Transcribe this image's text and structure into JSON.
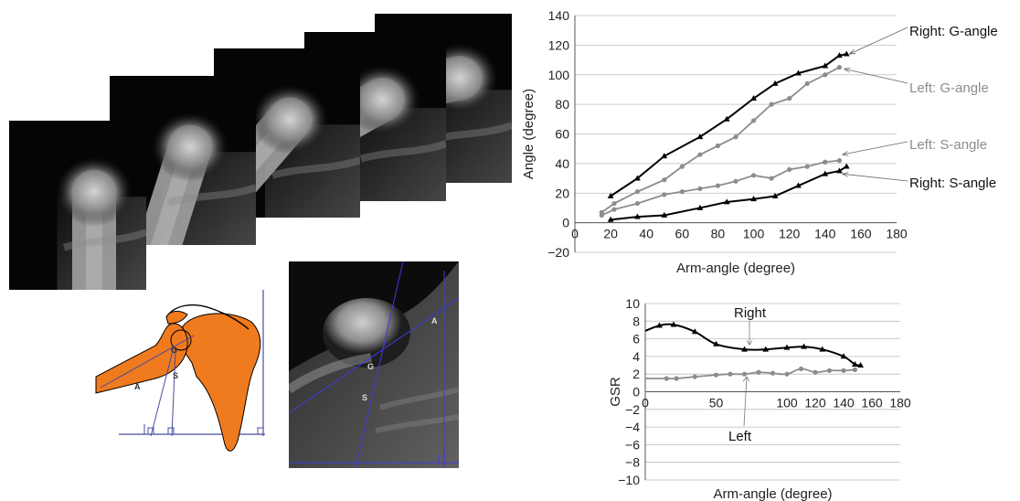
{
  "diagram": {
    "labels": [
      "G",
      "S",
      "A"
    ]
  },
  "chart_data": [
    {
      "type": "line",
      "xlabel": "Arm-angle (degree)",
      "ylabel": "Angle (degree)",
      "xlim": [
        0,
        180
      ],
      "ylim": [
        -20,
        140
      ],
      "xticks": [
        0,
        20,
        40,
        60,
        80,
        100,
        120,
        140,
        160,
        180
      ],
      "yticks": [
        -20,
        0,
        20,
        40,
        60,
        80,
        100,
        120,
        140
      ],
      "grid": "horizontal",
      "series": [
        {
          "name": "Right: G-angle",
          "color": "#000000",
          "marker": "triangle",
          "x": [
            20,
            35,
            50,
            70,
            85,
            100,
            112,
            125,
            140,
            148,
            152
          ],
          "y": [
            18,
            30,
            45,
            58,
            70,
            84,
            94,
            101,
            106,
            113,
            114
          ]
        },
        {
          "name": "Left: G-angle",
          "color": "#8c8c8c",
          "marker": "circle",
          "x": [
            15,
            22,
            35,
            50,
            60,
            70,
            80,
            90,
            100,
            110,
            120,
            130,
            140,
            148
          ],
          "y": [
            7,
            13,
            21,
            29,
            38,
            46,
            52,
            58,
            69,
            80,
            84,
            94,
            100,
            105
          ]
        },
        {
          "name": "Left: S-angle",
          "color": "#8c8c8c",
          "marker": "circle",
          "x": [
            15,
            22,
            35,
            50,
            60,
            70,
            80,
            90,
            100,
            110,
            120,
            130,
            140,
            148
          ],
          "y": [
            5,
            9,
            13,
            19,
            21,
            23,
            25,
            28,
            32,
            30,
            36,
            38,
            41,
            42
          ]
        },
        {
          "name": "Right: S-angle",
          "color": "#000000",
          "marker": "triangle",
          "x": [
            20,
            35,
            50,
            70,
            85,
            100,
            112,
            125,
            140,
            148,
            152
          ],
          "y": [
            2,
            4,
            5,
            10,
            14,
            16,
            18,
            25,
            33,
            35,
            38
          ]
        }
      ]
    },
    {
      "type": "line",
      "xlabel": "Arm-angle (degree)",
      "ylabel": "GSR",
      "xlim": [
        0,
        180
      ],
      "ylim": [
        -10,
        10
      ],
      "xticks": [
        0,
        50,
        100,
        120,
        140,
        160,
        180
      ],
      "yticks": [
        -10,
        -8,
        -6,
        -4,
        -2,
        0,
        2,
        4,
        6,
        8,
        10
      ],
      "grid": "horizontal",
      "series": [
        {
          "name": "Right",
          "color": "#000000",
          "marker": "triangle",
          "x": [
            0,
            10,
            20,
            35,
            50,
            70,
            85,
            100,
            112,
            125,
            140,
            148,
            152
          ],
          "y": [
            6.9,
            7.5,
            7.6,
            6.8,
            5.4,
            4.8,
            4.8,
            5.0,
            5.1,
            4.8,
            4.0,
            3.1,
            3.0
          ]
        },
        {
          "name": "Left",
          "color": "#8c8c8c",
          "marker": "circle",
          "x": [
            0,
            15,
            22,
            35,
            50,
            60,
            70,
            80,
            90,
            100,
            110,
            120,
            130,
            140,
            148
          ],
          "y": [
            1.5,
            1.5,
            1.5,
            1.7,
            1.9,
            2.0,
            2.0,
            2.2,
            2.1,
            2.0,
            2.6,
            2.2,
            2.4,
            2.4,
            2.5
          ]
        }
      ]
    }
  ]
}
